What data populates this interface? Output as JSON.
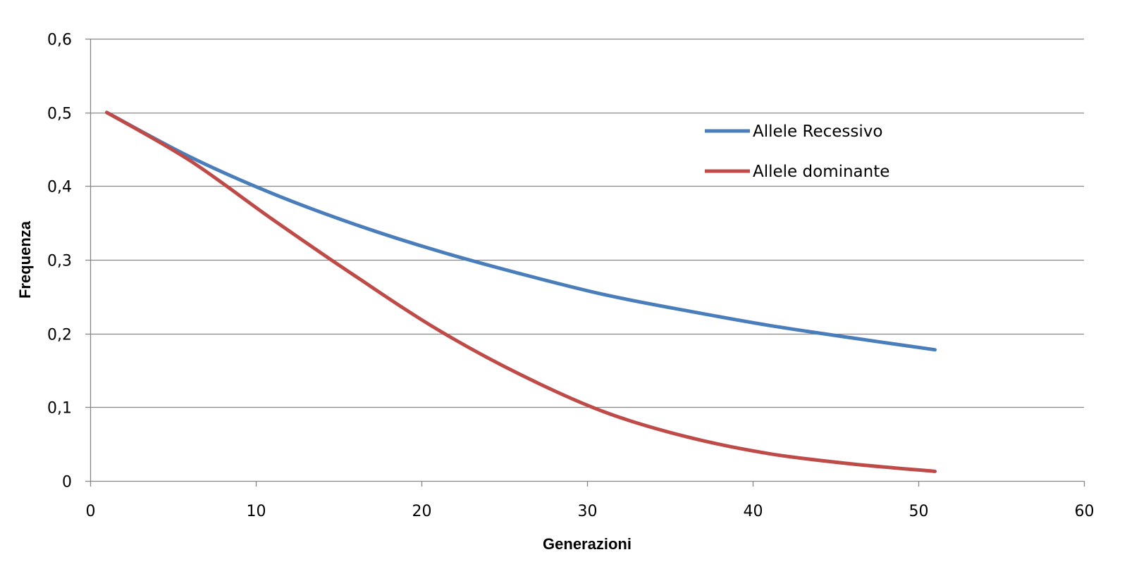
{
  "chart_data": {
    "type": "line",
    "title": "",
    "xlabel": "Generazioni",
    "ylabel": "Frequenza",
    "xlim": [
      0,
      60
    ],
    "ylim": [
      0,
      0.6
    ],
    "xticks": [
      0,
      10,
      20,
      30,
      40,
      50,
      60
    ],
    "yticks": [
      0,
      0.1,
      0.2,
      0.3,
      0.4,
      0.5,
      0.6
    ],
    "xtick_labels": [
      "0",
      "10",
      "20",
      "30",
      "40",
      "50",
      "60"
    ],
    "ytick_labels": [
      "0",
      "0,1",
      "0,2",
      "0,3",
      "0,4",
      "0,5",
      "0,6"
    ],
    "grid": "horizontal",
    "legend_position": "top-right",
    "series": [
      {
        "name": "Allele Recessivo",
        "color": "#4a7ebb",
        "x": [
          1,
          6,
          11,
          16,
          21,
          26,
          31,
          36,
          41,
          46,
          51
        ],
        "y": [
          0.5,
          0.44,
          0.39,
          0.348,
          0.312,
          0.281,
          0.253,
          0.231,
          0.211,
          0.194,
          0.178
        ]
      },
      {
        "name": "Allele dominante",
        "color": "#be4b48",
        "x": [
          1,
          6,
          11,
          16,
          21,
          26,
          31,
          36,
          41,
          46,
          51
        ],
        "y": [
          0.5,
          0.435,
          0.355,
          0.278,
          0.205,
          0.144,
          0.094,
          0.06,
          0.037,
          0.023,
          0.013
        ]
      }
    ]
  }
}
